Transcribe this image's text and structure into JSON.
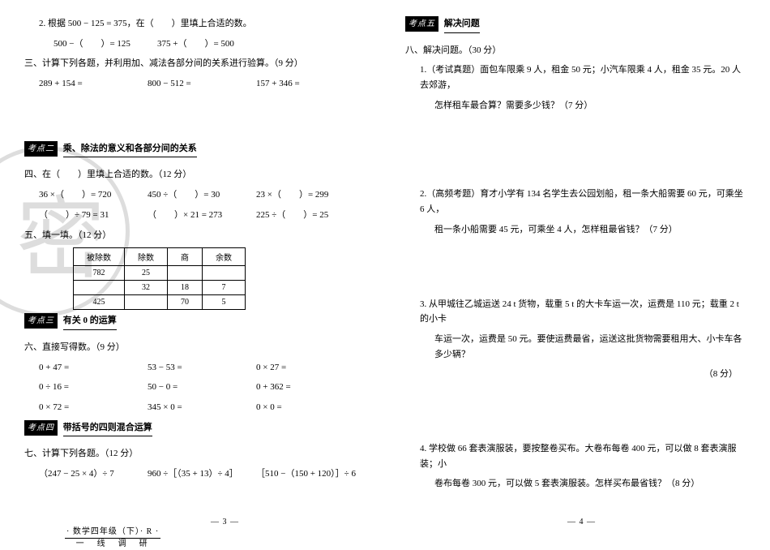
{
  "left": {
    "q2": "2. 根据 500 − 125 = 375，在（　　）里填上合适的数。",
    "q2a": "500 −（　　）= 125",
    "q2b": "375 +（　　）= 500",
    "q3": "三、计算下列各题，并利用加、减法各部分间的关系进行验算。（9 分）",
    "q3a": "289 + 154 =",
    "q3b": "800 − 512 =",
    "q3c": "157 + 346 =",
    "sec2_tag": "考点二",
    "sec2_title": "乘、除法的意义和各部分间的关系",
    "q4": "四、在（　　）里填上合适的数。（12 分）",
    "q4a": "36 ×（　　）= 720",
    "q4b": "450 ÷（　　）= 30",
    "q4c": "23 ×（　　）= 299",
    "q4d": "（　　）÷ 79 = 31",
    "q4e": "（　　）× 21 = 273",
    "q4f": "225 ÷（　　）= 25",
    "q5": "五、填一填。（12 分）",
    "table": {
      "headers": [
        "被除数",
        "除数",
        "商",
        "余数"
      ],
      "rows": [
        [
          "782",
          "25",
          "",
          ""
        ],
        [
          "",
          "32",
          "18",
          "7"
        ],
        [
          "425",
          "",
          "70",
          "5"
        ]
      ]
    },
    "sec3_tag": "考点三",
    "sec3_title": "有关 0 的运算",
    "q6": "六、直接写得数。（9 分）",
    "q6a": "0 + 47 =",
    "q6b": "53 − 53 =",
    "q6c": "0 × 27 =",
    "q6d": "0 ÷ 16 =",
    "q6e": "50 − 0 =",
    "q6f": "0 + 362 =",
    "q6g": "0 × 72 =",
    "q6h": "345 × 0 =",
    "q6i": "0 × 0 =",
    "sec4_tag": "考点四",
    "sec4_title": "带括号的四则混合运算",
    "q7": "七、计算下列各题。（12 分）",
    "q7a": "（247 − 25 × 4）÷ 7",
    "q7b": "960 ÷［（35 + 13）÷ 4］",
    "q7c": "［510 −（150 + 120）］÷ 6"
  },
  "right": {
    "sec5_tag": "考点五",
    "sec5_title": "解决问题",
    "q8": "八、解决问题。（30 分）",
    "p1": "1.（考试真题）面包车限乘 9 人，租金 50 元；小汽车限乘 4 人，租金 35 元。20 人去郊游，",
    "p1b": "怎样租车最合算？需要多少钱？（7 分）",
    "p2": "2.（高频考题）育才小学有 134 名学生去公园划船，租一条大船需要 60 元，可乘坐 6 人，",
    "p2b": "租一条小船需要 45 元，可乘坐 4 人，怎样租最省钱？（7 分）",
    "p3": "3. 从甲城往乙城运送 24 t 货物，载重 5 t 的大卡车运一次，运费是 110 元；载重 2 t 的小卡",
    "p3b": "车运一次，运费是 50 元。要使运费最省，运送这批货物需要租用大、小卡车各多少辆？",
    "p3c": "（8 分）",
    "p4": "4. 学校做 66 套表演服装，要按整卷买布。大卷布每卷 400 元，可以做 8 套表演服装；小",
    "p4b": "卷布每卷 300 元，可以做 5 套表演服装。怎样买布最省钱？（8 分）"
  },
  "footer": {
    "top": "· 数学四年级（下）· R ·",
    "bot": "一　线　调　研",
    "pg3": "— 3 —",
    "pg4": "— 4 —"
  }
}
